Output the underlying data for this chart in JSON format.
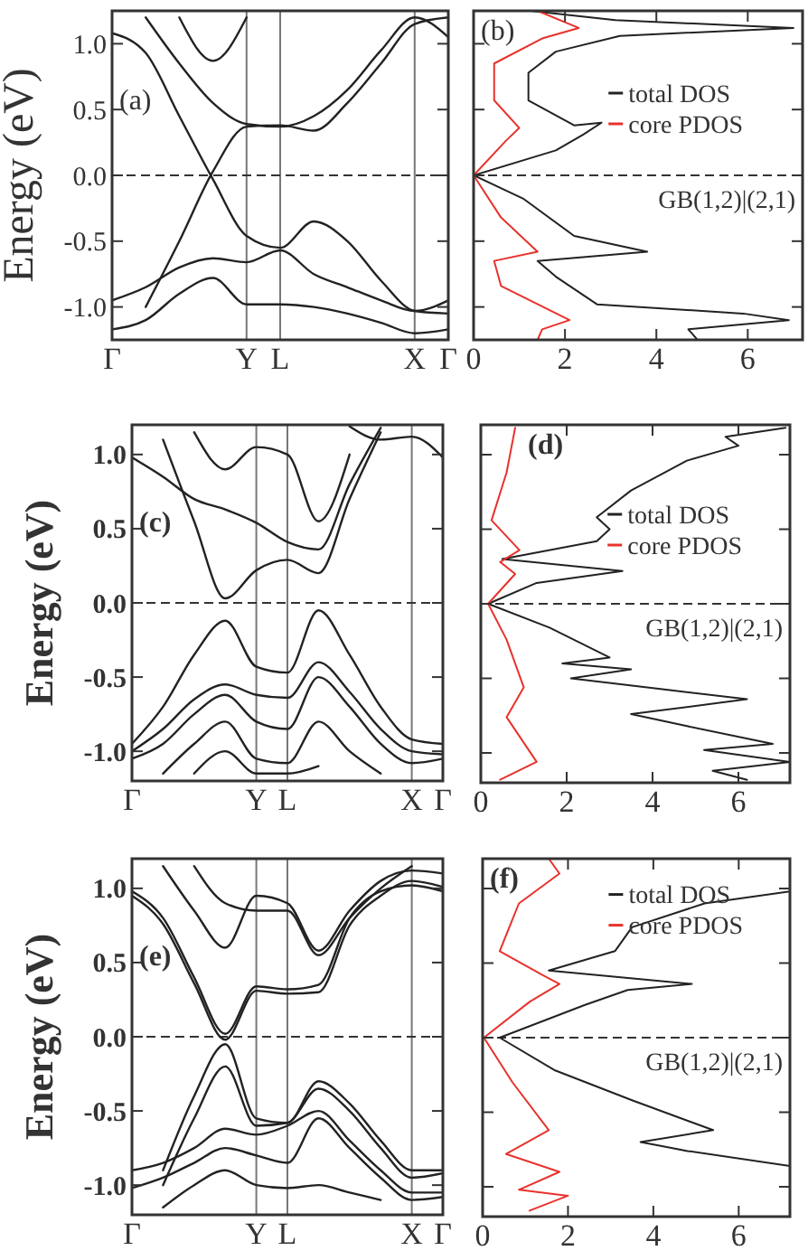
{
  "chart_data": [
    {
      "type": "line",
      "ylabel": "Energy (eV)",
      "color": "#222222",
      "grid": "x",
      "annotations": [
        "(a)"
      ],
      "categories": [
        "Γ",
        null,
        null,
        null,
        "Y",
        "L",
        null,
        null,
        null,
        "X",
        "Γ"
      ],
      "ylim": [
        -1.25,
        1.25
      ],
      "yticks": [
        {
          "value": -1,
          "label": "-1.0"
        },
        {
          "value": -0.5,
          "label": "-0.5"
        },
        {
          "value": 0,
          "label": "0.0"
        },
        {
          "value": 0.5,
          "label": "0.5"
        },
        {
          "value": 1,
          "label": "1.0"
        }
      ],
      "ref_lines": [
        {
          "axis": "y",
          "value": 0,
          "line_style": "dashed"
        }
      ],
      "series": [
        {
          "values": [
            1.08,
            0.93,
            0.45,
            -0.03,
            -0.46,
            -0.55,
            -0.35,
            -0.5,
            -0.8,
            -1.03,
            -1.05
          ]
        },
        {
          "values": [
            null,
            -1.0,
            -0.5,
            0.03,
            0.37,
            0.38,
            0.34,
            0.55,
            0.85,
            1.15,
            1.2
          ]
        },
        {
          "values": [
            null,
            1.2,
            0.85,
            0.55,
            0.39,
            0.37,
            0.45,
            0.65,
            0.95,
            1.2,
            1.05
          ]
        },
        {
          "values": [
            null,
            null,
            1.2,
            0.87,
            1.2,
            null,
            null,
            null,
            null,
            null,
            null
          ]
        },
        {
          "values": [
            -0.95,
            -0.85,
            -0.7,
            -0.63,
            -0.66,
            -0.57,
            -0.75,
            -0.85,
            -0.95,
            -1.03,
            -0.95
          ]
        },
        {
          "values": [
            -1.17,
            -1.1,
            -0.9,
            -0.78,
            -0.98,
            -0.98,
            -1.0,
            -1.05,
            -1.12,
            -1.2,
            -1.17
          ]
        }
      ]
    },
    {
      "type": "line",
      "tick_labels": "x",
      "legend": "right",
      "annotations": [
        "(b)",
        "GB(1,2)|(2,1)"
      ],
      "xlim": [
        0,
        7.2
      ],
      "xticks": [
        0,
        2,
        4,
        6
      ],
      "ylim": [
        -1.25,
        1.25
      ],
      "yticks": [
        {
          "value": -1,
          "label": null
        },
        {
          "value": -0.5,
          "label": null
        },
        {
          "value": 0,
          "label": null
        },
        {
          "value": 0.5,
          "label": null
        },
        {
          "value": 1,
          "label": null
        }
      ],
      "ref_lines": [
        {
          "axis": "y",
          "value": 0,
          "line_style": "dashed"
        }
      ],
      "series": [
        {
          "name": "total DOS",
          "color": "#222222",
          "x": [
            1.25,
            3.1,
            7.0,
            3.2,
            1.8,
            1.2,
            1.2,
            2.2,
            2.8,
            2.4,
            1.8,
            0,
            1.1,
            2.2,
            3.8,
            1.4,
            1.8,
            2.7,
            5.9,
            6.9,
            4.7,
            4.9
          ],
          "values": [
            1.25,
            1.18,
            1.12,
            1.06,
            0.94,
            0.78,
            0.57,
            0.38,
            0.4,
            0.31,
            0.19,
            0,
            -0.18,
            -0.46,
            -0.58,
            -0.65,
            -0.77,
            -0.98,
            -1.05,
            -1.1,
            -1.17,
            -1.25
          ]
        },
        {
          "name": "core PDOS",
          "color": "#e8322c",
          "x": [
            1.4,
            2.3,
            1.5,
            0.45,
            0.45,
            1.0,
            0.7,
            0,
            0.6,
            1.4,
            0.45,
            0.6,
            2.1,
            1.5,
            1.4
          ],
          "values": [
            1.25,
            1.12,
            1.04,
            0.85,
            0.57,
            0.36,
            0.26,
            0,
            -0.32,
            -0.58,
            -0.65,
            -0.84,
            -1.1,
            -1.17,
            -1.25
          ]
        }
      ]
    },
    {
      "type": "line",
      "ylabel": "Energy (eV)",
      "color": "#222222",
      "grid": "x",
      "annotations": [
        "(c)"
      ],
      "categories": [
        "Γ",
        null,
        null,
        null,
        "Y",
        "L",
        null,
        null,
        null,
        "X",
        "Γ"
      ],
      "ylim": [
        -1.2,
        1.2
      ],
      "yticks": [
        {
          "value": -1,
          "label": "-1.0"
        },
        {
          "value": -0.5,
          "label": "-0.5"
        },
        {
          "value": 0,
          "label": "0.0"
        },
        {
          "value": 0.5,
          "label": "0.5"
        },
        {
          "value": 1,
          "label": "1.0"
        }
      ],
      "ref_lines": [
        {
          "axis": "y",
          "value": 0,
          "line_style": "dashed"
        }
      ],
      "series": [
        {
          "values": [
            null,
            1.1,
            0.55,
            0.03,
            0.22,
            0.29,
            0.2,
            0.7,
            1.15,
            null,
            null
          ]
        },
        {
          "values": [
            0.98,
            0.85,
            0.7,
            0.63,
            0.54,
            0.41,
            0.36,
            0.8,
            1.18,
            null,
            null
          ]
        },
        {
          "values": [
            null,
            null,
            1.15,
            0.9,
            1.05,
            1.0,
            0.55,
            1.0,
            null,
            null,
            null
          ]
        },
        {
          "values": [
            null,
            null,
            null,
            null,
            null,
            null,
            null,
            1.19,
            1.1,
            1.12,
            0.98
          ]
        },
        {
          "values": [
            -0.95,
            -0.7,
            -0.35,
            -0.12,
            -0.43,
            -0.47,
            -0.05,
            -0.35,
            -0.7,
            -0.92,
            -0.95
          ]
        },
        {
          "values": [
            -1.0,
            -0.85,
            -0.65,
            -0.55,
            -0.62,
            -0.64,
            -0.4,
            -0.6,
            -0.85,
            -1.0,
            -1.02
          ]
        },
        {
          "values": [
            -1.05,
            -0.95,
            -0.75,
            -0.62,
            -0.8,
            -0.85,
            -0.5,
            -0.7,
            -0.95,
            -1.08,
            -1.05
          ]
        },
        {
          "values": [
            null,
            -1.15,
            -0.95,
            -0.8,
            -1.05,
            -1.08,
            -0.8,
            -1.0,
            -1.15,
            null,
            null
          ]
        },
        {
          "values": [
            null,
            null,
            -1.15,
            -1.0,
            -1.15,
            -1.15,
            -1.1,
            null,
            null,
            null,
            null
          ]
        }
      ]
    },
    {
      "type": "line",
      "tick_labels": "x",
      "legend": "right",
      "annotations": [
        "(d)",
        "GB(1,2)|(2,1)"
      ],
      "xlim": [
        0,
        7.2
      ],
      "xticks": [
        0,
        2,
        4,
        6
      ],
      "ylim": [
        -1.2,
        1.2
      ],
      "yticks": [
        {
          "value": -1,
          "label": null
        },
        {
          "value": -0.5,
          "label": null
        },
        {
          "value": 0,
          "label": null
        },
        {
          "value": 0.5,
          "label": null
        },
        {
          "value": 1,
          "label": null
        }
      ],
      "ref_lines": [
        {
          "axis": "y",
          "value": 0,
          "line_style": "dashed"
        }
      ],
      "series": [
        {
          "name": "total DOS",
          "color": "#222222",
          "x": [
            7.1,
            5.7,
            6.0,
            4.8,
            3.5,
            2.7,
            3.0,
            2.7,
            0.5,
            3.3,
            1.3,
            0.17,
            1.6,
            3.0,
            1.9,
            3.5,
            2.1,
            6.2,
            3.5,
            4.8,
            6.8,
            5.2,
            7.2,
            5.4,
            6.2
          ],
          "values": [
            1.18,
            1.12,
            1.06,
            0.96,
            0.76,
            0.58,
            0.5,
            0.42,
            0.3,
            0.22,
            0.14,
            0,
            -0.16,
            -0.36,
            -0.4,
            -0.44,
            -0.5,
            -0.64,
            -0.74,
            -0.82,
            -0.94,
            -0.98,
            -1.06,
            -1.12,
            -1.18
          ]
        },
        {
          "name": "core PDOS",
          "color": "#e8322c",
          "x": [
            0.8,
            0.6,
            0.25,
            0.9,
            0.45,
            0.8,
            0.17,
            0.6,
            1.0,
            0.6,
            1.3,
            0.45
          ],
          "values": [
            1.18,
            0.88,
            0.56,
            0.36,
            0.28,
            0.2,
            0,
            -0.24,
            -0.56,
            -0.76,
            -1.06,
            -1.18
          ]
        }
      ]
    },
    {
      "type": "line",
      "ylabel": "Energy (eV)",
      "color": "#222222",
      "grid": "x",
      "annotations": [
        "(e)"
      ],
      "categories": [
        "Γ",
        null,
        null,
        null,
        "Y",
        "L",
        null,
        null,
        null,
        "X",
        "Γ"
      ],
      "ylim": [
        -1.2,
        1.2
      ],
      "yticks": [
        {
          "value": -1,
          "label": "-1.0"
        },
        {
          "value": -0.5,
          "label": "-0.5"
        },
        {
          "value": 0,
          "label": "0.0"
        },
        {
          "value": 0.5,
          "label": "0.5"
        },
        {
          "value": 1,
          "label": "1.0"
        }
      ],
      "ref_lines": [
        {
          "axis": "y",
          "value": 0,
          "line_style": "dashed"
        }
      ],
      "series": [
        {
          "values": [
            0.98,
            0.8,
            0.4,
            0.02,
            0.34,
            0.32,
            0.35,
            0.8,
            0.98,
            1.02,
            0.98
          ]
        },
        {
          "values": [
            0.95,
            0.76,
            0.36,
            -0.02,
            0.31,
            0.29,
            0.3,
            0.75,
            0.95,
            1.05,
            1.01
          ]
        },
        {
          "values": [
            null,
            1.15,
            0.85,
            0.6,
            0.95,
            0.9,
            0.58,
            0.85,
            1.05,
            1.12,
            1.1
          ]
        },
        {
          "values": [
            null,
            null,
            1.15,
            0.9,
            0.85,
            0.85,
            0.55,
            0.8,
            1.0,
            1.15,
            null
          ]
        },
        {
          "values": [
            null,
            -0.9,
            -0.4,
            -0.05,
            -0.55,
            -0.58,
            -0.3,
            -0.45,
            -0.7,
            -0.9,
            -0.9
          ]
        },
        {
          "values": [
            null,
            -1.0,
            -0.55,
            -0.2,
            -0.6,
            -0.58,
            -0.35,
            -0.5,
            -0.75,
            -0.95,
            -0.92
          ]
        },
        {
          "values": [
            -0.9,
            -0.85,
            -0.75,
            -0.62,
            -0.66,
            -0.6,
            -0.5,
            -0.7,
            -0.9,
            -1.05,
            -1.05
          ]
        },
        {
          "values": [
            -1.02,
            -0.95,
            -0.85,
            -0.75,
            -0.8,
            -0.85,
            -0.55,
            -0.75,
            -0.95,
            -1.1,
            -1.08
          ]
        },
        {
          "values": [
            null,
            -1.15,
            -1.0,
            -0.9,
            -1.0,
            -1.02,
            -1.0,
            -1.05,
            -1.1,
            null,
            null
          ]
        }
      ]
    },
    {
      "type": "line",
      "tick_labels": "x",
      "legend": "top right",
      "annotations": [
        "(f)",
        "GB(1,2)|(2,1)"
      ],
      "xlim": [
        0,
        7.2
      ],
      "xticks": [
        0,
        2,
        4,
        6
      ],
      "ylim": [
        -1.2,
        1.2
      ],
      "yticks": [
        {
          "value": -1,
          "label": null
        },
        {
          "value": -0.5,
          "label": null
        },
        {
          "value": 0,
          "label": null
        },
        {
          "value": 0.5,
          "label": null
        },
        {
          "value": 1,
          "label": null
        }
      ],
      "ref_lines": [
        {
          "axis": "y",
          "value": 0,
          "line_style": "dashed"
        }
      ],
      "series": [
        {
          "name": "total DOS",
          "color": "#222222",
          "x": [
            7.2,
            5.2,
            3.5,
            3.1,
            1.55,
            4.9,
            3.4,
            2.4,
            0.4,
            1.7,
            3.5,
            5.4,
            3.7,
            4.8,
            7.2
          ],
          "values": [
            0.98,
            0.9,
            0.74,
            0.58,
            0.45,
            0.36,
            0.32,
            0.22,
            0,
            -0.22,
            -0.42,
            -0.62,
            -0.7,
            -0.76,
            -0.86
          ]
        },
        {
          "name": "core PDOS",
          "color": "#e8322c",
          "x": [
            1.55,
            1.8,
            0.85,
            0.4,
            1.4,
            1.8,
            1.1,
            0.03,
            0.7,
            1.55,
            0.55,
            1.8,
            0.85,
            2.0,
            1.1
          ],
          "values": [
            1.2,
            1.1,
            0.9,
            0.58,
            0.42,
            0.36,
            0.24,
            0,
            -0.3,
            -0.62,
            -0.78,
            -0.9,
            -1.02,
            -1.06,
            -1.16
          ]
        }
      ]
    }
  ]
}
